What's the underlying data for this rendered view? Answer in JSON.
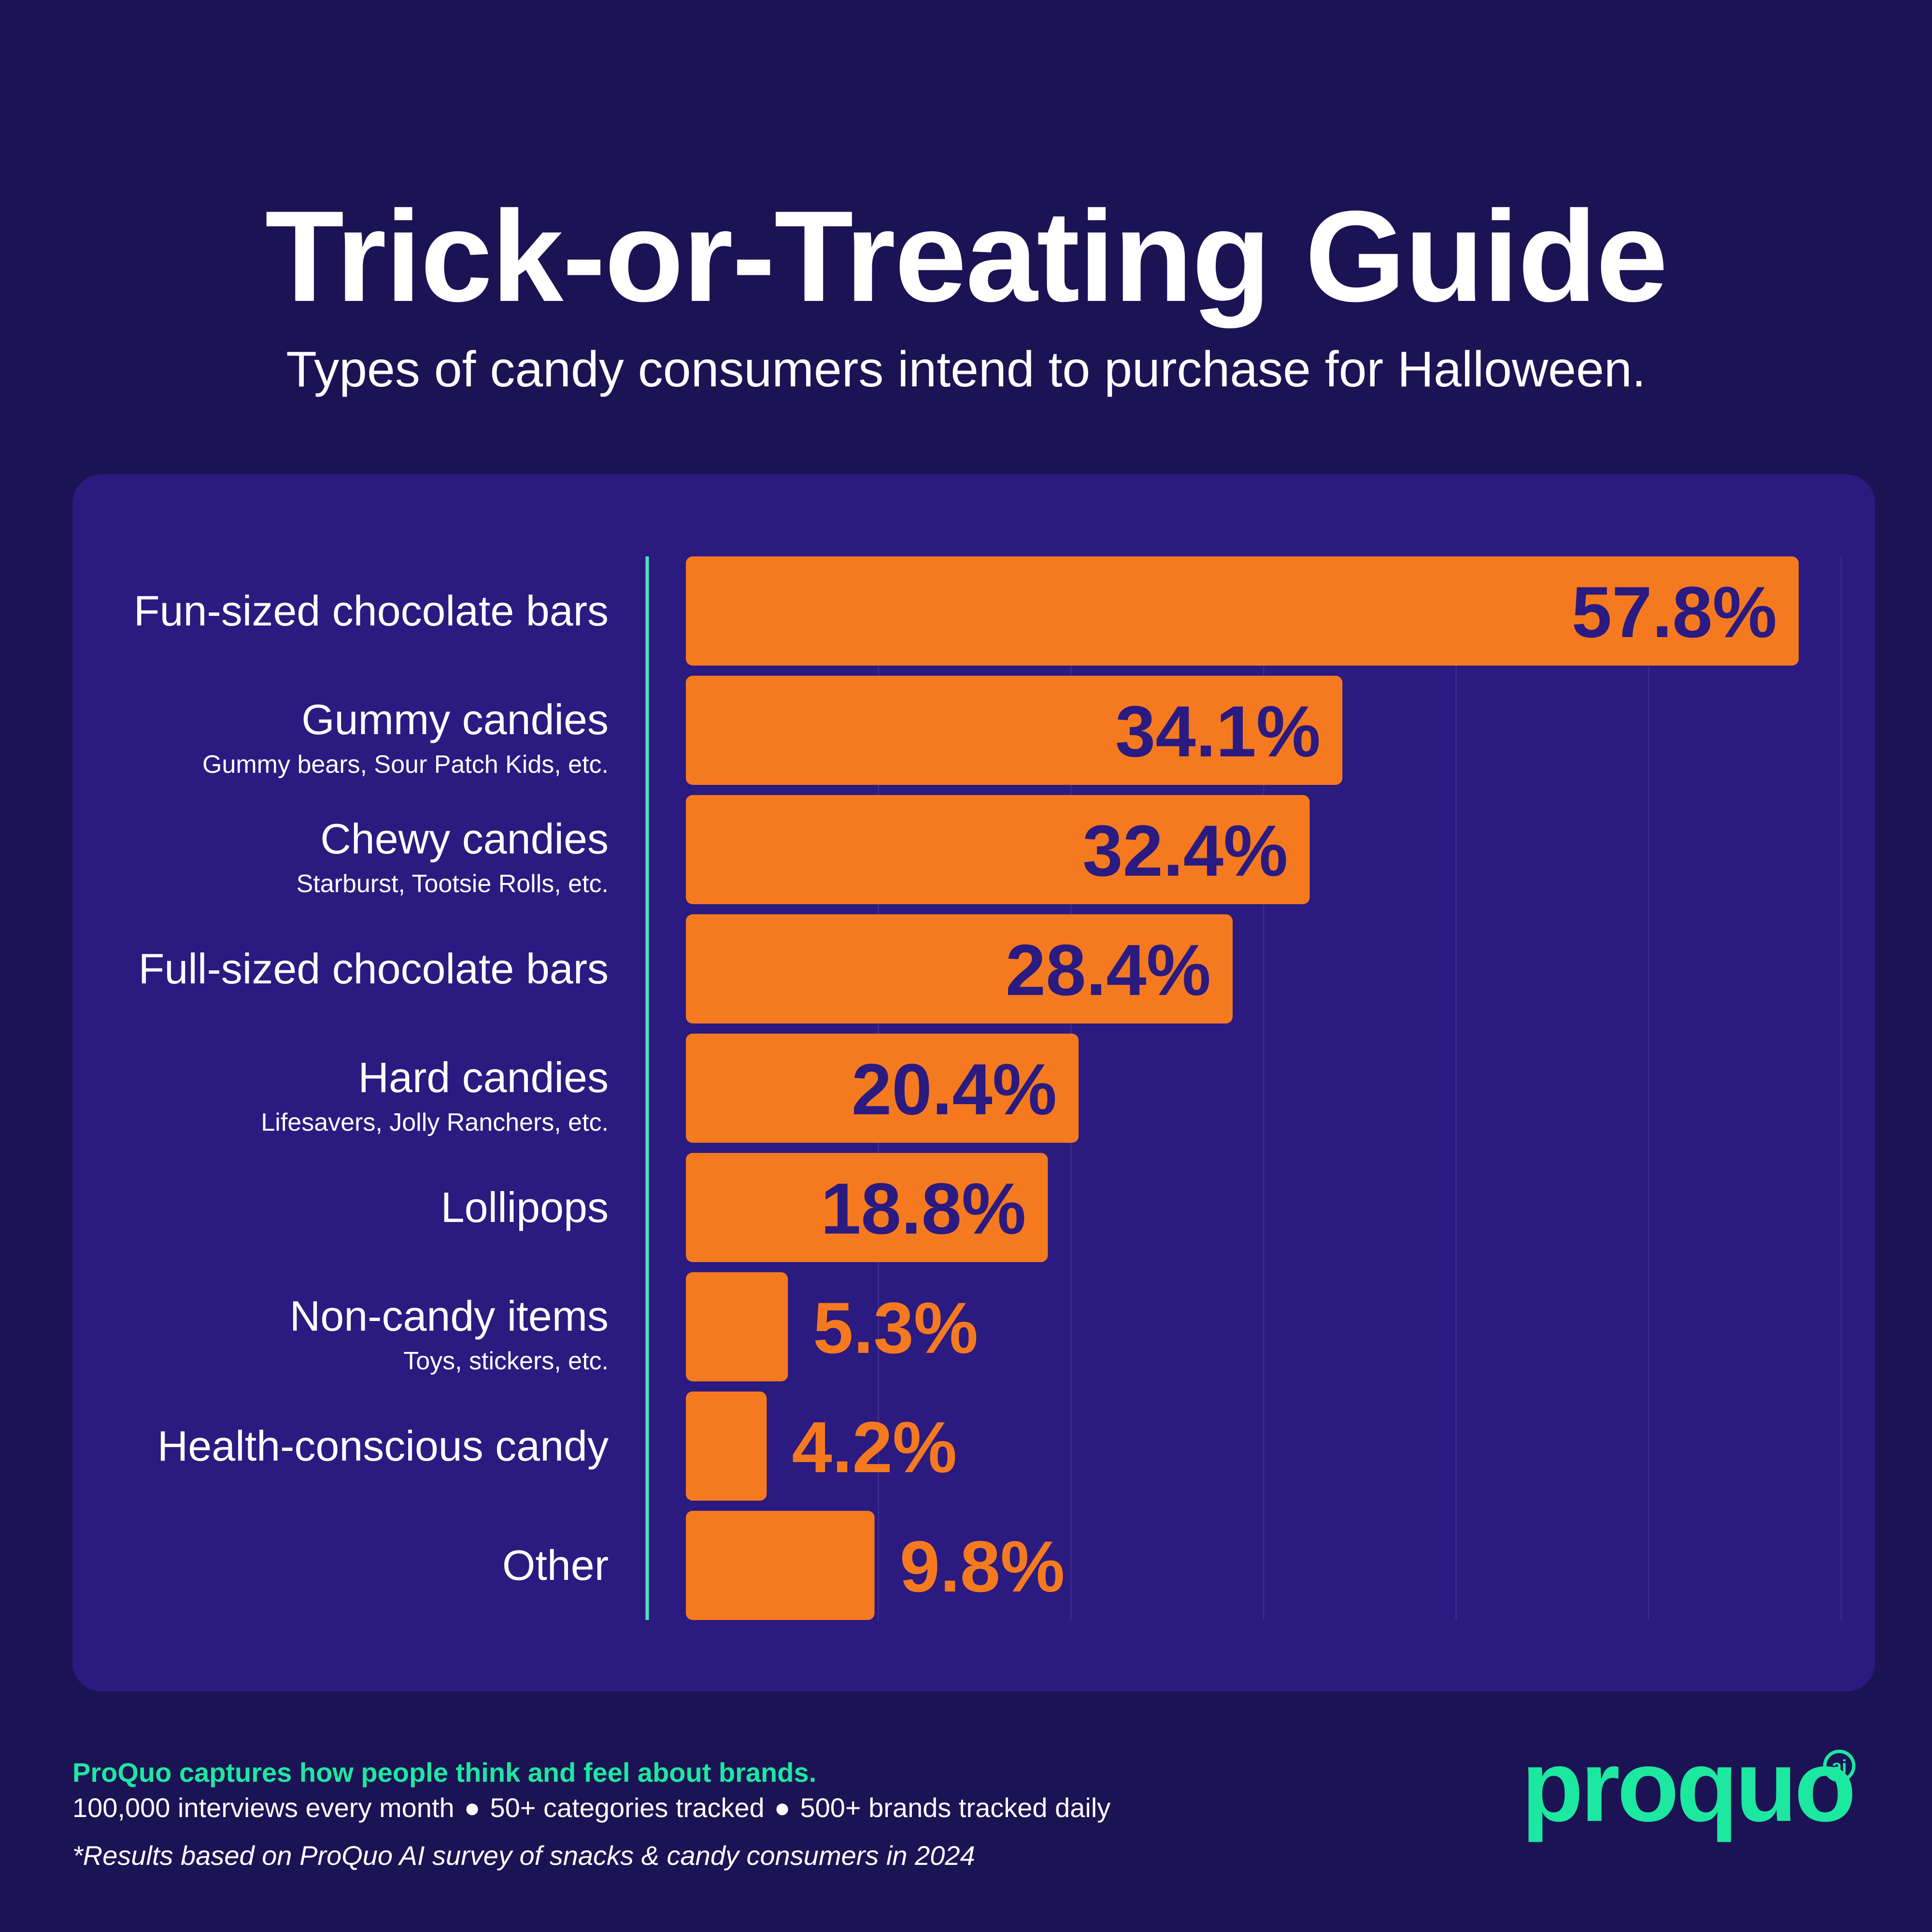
{
  "header": {
    "title": "Trick-or-Treating Guide",
    "subtitle": "Types of candy consumers intend to purchase for Halloween."
  },
  "colors": {
    "background": "#1c1354",
    "panel": "#2b1a80",
    "bar": "#f57a1f",
    "axis_line": "#4fe0c0",
    "gridline": "#3a2a8e",
    "brand_green": "#1de8a0"
  },
  "chart_data": {
    "type": "bar",
    "orientation": "horizontal",
    "categories": [
      "Fun-sized chocolate bars",
      "Gummy candies",
      "Chewy candies",
      "Full-sized chocolate bars",
      "Hard candies",
      "Lollipops",
      "Non-candy items",
      "Health-conscious candy",
      "Other"
    ],
    "subcategories": [
      "",
      "Gummy bears, Sour Patch Kids, etc.",
      "Starburst, Tootsie Rolls, etc.",
      "",
      "Lifesavers, Jolly Ranchers, etc.",
      "",
      "Toys, stickers, etc.",
      "",
      ""
    ],
    "values": [
      57.8,
      34.1,
      32.4,
      28.4,
      20.4,
      18.8,
      5.3,
      4.2,
      9.8
    ],
    "value_labels": [
      "57.8%",
      "34.1%",
      "32.4%",
      "28.4%",
      "20.4%",
      "18.8%",
      "5.3%",
      "4.2%",
      "9.8%"
    ],
    "xlim": [
      0,
      60
    ],
    "grid": true,
    "legend": "none"
  },
  "footer": {
    "lead": "ProQuo captures how people think and feel about brands.",
    "stat_1": "100,000 interviews every month",
    "stat_2": "50+ categories tracked",
    "stat_3": "500+ brands tracked daily",
    "bullet": "●",
    "note": "*Results based on ProQuo AI survey of snacks & candy consumers in 2024"
  },
  "logo": {
    "wordmark": "proquo",
    "badge": "ai"
  }
}
